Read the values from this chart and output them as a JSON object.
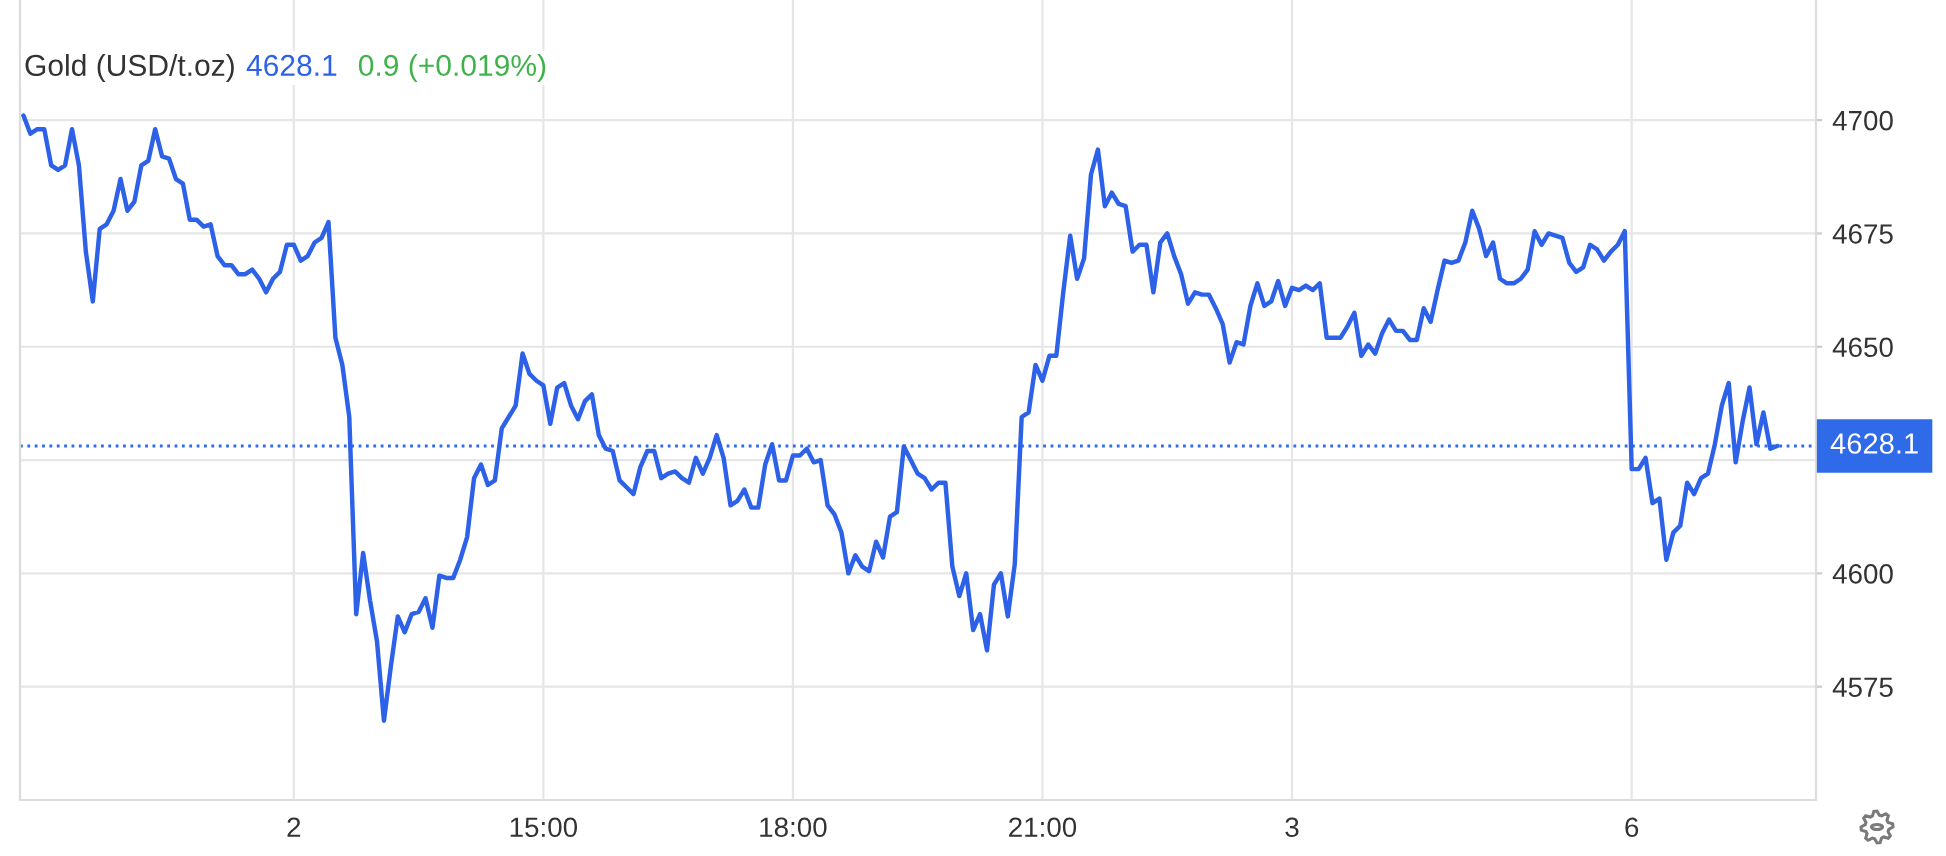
{
  "chart_data": {
    "type": "line",
    "title": "Gold (USD/t.oz)",
    "annotations": [
      "4628.1",
      "0.9 (+0.019%)"
    ],
    "categories": [
      null,
      null,
      null,
      null,
      null,
      null,
      null,
      null,
      null,
      null,
      null,
      null,
      null,
      null,
      null,
      null,
      null,
      null,
      null,
      null,
      null,
      null,
      null,
      null,
      null,
      null,
      null,
      null,
      null,
      null,
      null,
      null,
      null,
      null,
      null,
      null,
      null,
      null,
      null,
      "2",
      null,
      null,
      null,
      null,
      null,
      null,
      null,
      null,
      null,
      null,
      null,
      null,
      null,
      null,
      null,
      null,
      null,
      null,
      null,
      null,
      null,
      null,
      null,
      null,
      null,
      null,
      null,
      null,
      null,
      null,
      null,
      null,
      null,
      null,
      null,
      "15:00",
      null,
      null,
      null,
      null,
      null,
      null,
      null,
      null,
      null,
      null,
      null,
      null,
      null,
      null,
      null,
      null,
      null,
      null,
      null,
      null,
      null,
      null,
      null,
      null,
      null,
      null,
      null,
      null,
      null,
      null,
      null,
      null,
      null,
      null,
      null,
      "18:00",
      null,
      null,
      null,
      null,
      null,
      null,
      null,
      null,
      null,
      null,
      null,
      null,
      null,
      null,
      null,
      null,
      null,
      null,
      null,
      null,
      null,
      null,
      null,
      null,
      null,
      null,
      null,
      null,
      null,
      null,
      null,
      null,
      null,
      null,
      null,
      "21:00",
      null,
      null,
      null,
      null,
      null,
      null,
      null,
      null,
      null,
      null,
      null,
      null,
      null,
      null,
      null,
      null,
      null,
      null,
      null,
      null,
      null,
      null,
      null,
      null,
      null,
      null,
      null,
      null,
      null,
      null,
      null,
      null,
      null,
      null,
      null,
      "3",
      null,
      null,
      null,
      null,
      null,
      null,
      null,
      null,
      null,
      null,
      null,
      null,
      null,
      null,
      null,
      null,
      null,
      null,
      null,
      null,
      null,
      null,
      null,
      null,
      null,
      null,
      null,
      null,
      null,
      null,
      null,
      null,
      null,
      null,
      null,
      null,
      null,
      null,
      null,
      null,
      null,
      null,
      null,
      null,
      null,
      null,
      null,
      null,
      "6",
      null,
      null,
      null,
      null,
      null,
      null,
      null,
      null,
      null,
      null,
      null,
      null,
      null,
      null,
      null,
      null,
      null,
      null,
      null,
      null,
      null
    ],
    "series": [
      {
        "color": "#2d62e8",
        "values": [
          4701,
          4697,
          4698,
          4698,
          4690,
          4689,
          4690,
          4698,
          4690,
          4671,
          4660,
          4676,
          4677,
          4680,
          4687,
          4680,
          4682,
          4690,
          4691,
          4698,
          4692,
          4691.5,
          4687,
          4686,
          4678,
          4678,
          4676.5,
          4677,
          4670,
          4668,
          4668,
          4666,
          4666,
          4667,
          4665,
          4662,
          4665,
          4666.5,
          4672.5,
          4672.5,
          4669,
          4670,
          4673,
          4674,
          4677.5,
          4652,
          4646,
          4634.5,
          4591,
          4604.5,
          4594,
          4585,
          4567.5,
          4579.5,
          4590.5,
          4587,
          4591,
          4591.5,
          4594.5,
          4588,
          4599.5,
          4599,
          4599,
          4603,
          4608,
          4621,
          4624,
          4619.5,
          4620.5,
          4632,
          4634.5,
          4637,
          4648.5,
          4644,
          4642.5,
          4641.5,
          4633,
          4641,
          4642,
          4637,
          4634,
          4638,
          4639.5,
          4630.5,
          4627.5,
          4627,
          4620.5,
          4619,
          4617.5,
          4623.5,
          4627,
          4627,
          4621,
          4622,
          4622.5,
          4621,
          4620,
          4625.5,
          4622,
          4625.5,
          4630.5,
          4625.5,
          4615,
          4616,
          4618.5,
          4614.5,
          4614.5,
          4624,
          4628.5,
          4620.5,
          4620.5,
          4626,
          4626,
          4627.5,
          4624.5,
          4625,
          4615,
          4613,
          4609,
          4600,
          4604,
          4601.5,
          4600.5,
          4607,
          4603.5,
          4612.5,
          4613.5,
          4628,
          4625,
          4622,
          4621,
          4618.5,
          4620,
          4620,
          4601.5,
          4595,
          4600,
          4587.5,
          4591,
          4583,
          4597.5,
          4600,
          4590.5,
          4602,
          4634.5,
          4635.5,
          4646,
          4642.5,
          4648,
          4648,
          4662,
          4674.5,
          4665,
          4669.5,
          4688,
          4693.5,
          4681,
          4684,
          4681.5,
          4681,
          4671,
          4672.5,
          4672.5,
          4662,
          4673,
          4675,
          4670,
          4666,
          4659.5,
          4662,
          4661.5,
          4661.5,
          4658.5,
          4655,
          4646.5,
          4651,
          4650.5,
          4659,
          4664,
          4659,
          4660,
          4664.5,
          4659,
          4663,
          4662.5,
          4663.5,
          4662.5,
          4664,
          4652,
          4652,
          4652,
          4654.5,
          4657.5,
          4648,
          4650.5,
          4648.5,
          4653,
          4656,
          4653.5,
          4653.5,
          4651.5,
          4651.5,
          4658.5,
          4655.5,
          4662.5,
          4669,
          4668.5,
          4669,
          4673,
          4680,
          4676,
          4670,
          4673,
          4665,
          4664,
          4664,
          4665,
          4667,
          4675.5,
          4672.5,
          4675,
          4674.5,
          4674,
          4668.5,
          4666.5,
          4667.5,
          4672.5,
          4671.5,
          4669,
          4671,
          4672.5,
          4675.5,
          4623,
          4623,
          4625.5,
          4615.5,
          4616.5,
          4603,
          4609,
          4610.5,
          4620,
          4617.5,
          4621,
          4622,
          4628.5,
          4637,
          4642,
          4624.5,
          4633.5,
          4641,
          4628.5,
          4635.5,
          4627.5,
          4628.1
        ]
      }
    ],
    "ylim": [
      4550,
      4726.5
    ],
    "yticks": [
      4575,
      4600,
      {
        "value": 4625,
        "label": null
      },
      4650,
      4675,
      4700
    ],
    "ref_lines": [
      {
        "axis": "y",
        "value": 4628.1,
        "label": "4628.1",
        "color": "#2f6ae8",
        "line_style": "dotted"
      }
    ],
    "grid": true,
    "line_style": "solid"
  }
}
